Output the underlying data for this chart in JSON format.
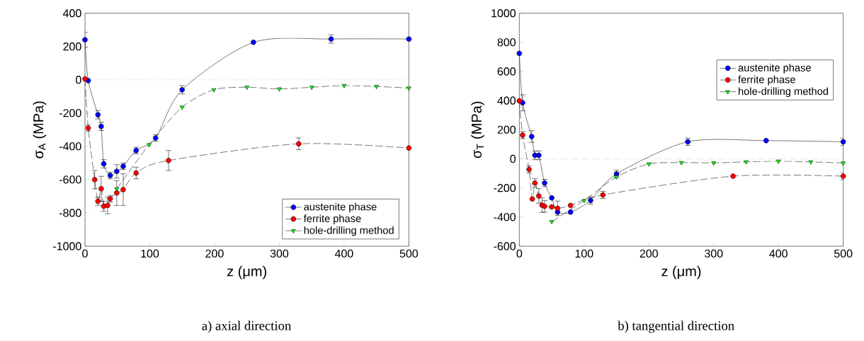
{
  "chart_data": [
    {
      "type": "line",
      "xlabel": "z (μm)",
      "ylabel": "σ$_{A}$ (MPa)",
      "xlim": [
        0,
        500
      ],
      "ylim": [
        -1000,
        400
      ],
      "xticks": [
        0,
        100,
        200,
        300,
        400,
        500
      ],
      "yticks": [
        -1000,
        -800,
        -600,
        -400,
        -200,
        0,
        200,
        400
      ],
      "legend": "bottom right",
      "grid": false,
      "annotations": [
        "a) axial direction"
      ],
      "ref_lines": [
        {
          "axis": "y",
          "value": 0,
          "color": "#c0c0c0",
          "line_style": "dashed"
        }
      ],
      "series": [
        {
          "name": "austenite phase",
          "color": "#0000ff",
          "marker": "circle",
          "line_style": "solid",
          "x": [
            0,
            5,
            20,
            25,
            29,
            39,
            49,
            59,
            79,
            109,
            150,
            260,
            380,
            500
          ],
          "values": [
            240,
            -5,
            -210,
            -280,
            -505,
            -575,
            -550,
            -520,
            -425,
            -350,
            -60,
            225,
            245,
            245
          ],
          "errors": [
            45,
            null,
            25,
            25,
            25,
            20,
            40,
            20,
            20,
            20,
            25,
            null,
            25,
            null
          ]
        },
        {
          "name": "ferrite phase",
          "color": "#ff0000",
          "marker": "circle",
          "line_style": "dashed",
          "x": [
            0,
            5,
            15,
            20,
            25,
            29,
            35,
            39,
            49,
            59,
            79,
            129,
            330,
            500
          ],
          "values": [
            5,
            -290,
            -600,
            -730,
            -655,
            -760,
            -755,
            -715,
            -680,
            -660,
            -560,
            -485,
            -385,
            -410
          ],
          "errors": [
            null,
            20,
            55,
            25,
            75,
            30,
            50,
            20,
            75,
            95,
            35,
            60,
            35,
            null
          ]
        },
        {
          "name": "hole-drilling method",
          "color": "#00ff00",
          "marker": "triangle",
          "line_style": "dashed",
          "x": [
            49,
            99,
            150,
            199,
            250,
            300,
            350,
            400,
            450,
            500
          ],
          "values": [
            -655,
            -390,
            -165,
            -60,
            -45,
            -55,
            -45,
            -35,
            -40,
            -50
          ]
        }
      ]
    },
    {
      "type": "line",
      "xlabel": "z (μm)",
      "ylabel": "σ$_{T}$ (MPa)",
      "xlim": [
        0,
        500
      ],
      "ylim": [
        -600,
        1000
      ],
      "xticks": [
        0,
        100,
        200,
        300,
        400,
        500
      ],
      "yticks": [
        -600,
        -400,
        -200,
        0,
        200,
        400,
        600,
        800,
        1000
      ],
      "legend": "right",
      "grid": false,
      "annotations": [
        "b) tangential direction"
      ],
      "ref_lines": [
        {
          "axis": "y",
          "value": 0,
          "color": "#c0c0c0",
          "line_style": "dashed"
        }
      ],
      "series": [
        {
          "name": "austenite phase",
          "color": "#0000ff",
          "marker": "circle",
          "line_style": "solid",
          "x": [
            0,
            5,
            19,
            24,
            30,
            39,
            50,
            59,
            79,
            110,
            150,
            260,
            381,
            500
          ],
          "values": [
            724,
            385,
            153,
            24,
            24,
            -166,
            -268,
            -366,
            -366,
            -286,
            -104,
            117,
            125,
            117
          ],
          "errors": [
            null,
            55,
            40,
            30,
            30,
            25,
            null,
            null,
            null,
            25,
            25,
            25,
            null,
            25
          ]
        },
        {
          "name": "ferrite phase",
          "color": "#ff0000",
          "marker": "circle",
          "line_style": "dashed",
          "x": [
            0,
            5,
            15,
            20,
            24,
            30,
            35,
            39,
            50,
            59,
            79,
            129,
            330,
            500
          ],
          "values": [
            398,
            163,
            -73,
            -276,
            -166,
            -255,
            -318,
            -326,
            -330,
            -340,
            -320,
            -248,
            -119,
            -119
          ],
          "errors": [
            null,
            25,
            25,
            null,
            30,
            50,
            50,
            40,
            null,
            50,
            null,
            25,
            null,
            25
          ]
        },
        {
          "name": "hole-drilling method",
          "color": "#00ff00",
          "marker": "triangle",
          "line_style": "dashed",
          "x": [
            50,
            100,
            150,
            200,
            250,
            300,
            350,
            400,
            450,
            500
          ],
          "values": [
            -431,
            -286,
            -124,
            -35,
            -26,
            -28,
            -21,
            -16,
            -21,
            -29
          ]
        }
      ]
    }
  ]
}
